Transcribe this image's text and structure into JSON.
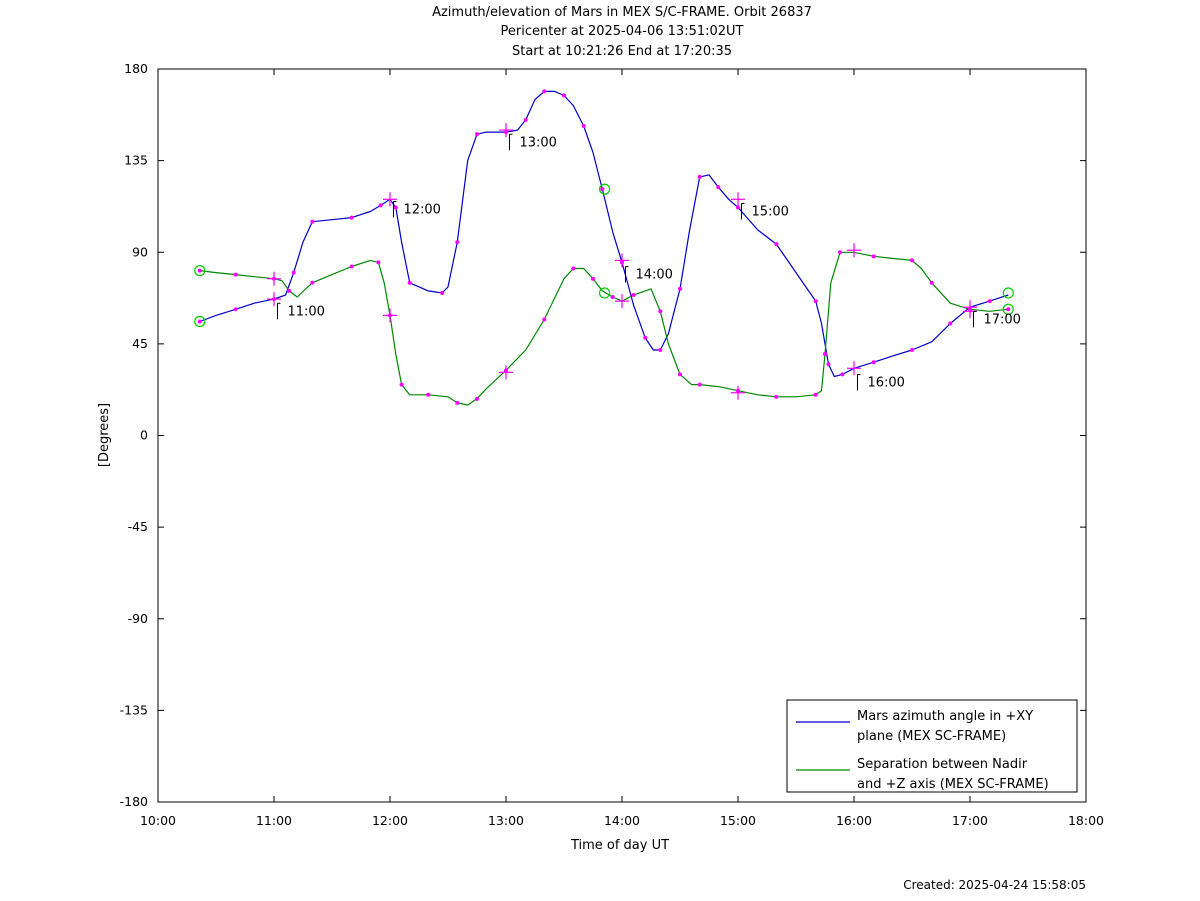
{
  "chart_data": {
    "type": "line",
    "title": [
      "Azimuth/elevation of Mars in MEX S/C-FRAME.  Orbit 26837",
      "Pericenter at 2025-04-06 13:51:02UT",
      "Start at 10:21:26 End at 17:20:35"
    ],
    "xlabel": "Time of day UT",
    "ylabel": "[Degrees]",
    "xlim": [
      10,
      18
    ],
    "ylim": [
      -180,
      180
    ],
    "x_ticks": [
      "10:00",
      "11:00",
      "12:00",
      "13:00",
      "14:00",
      "15:00",
      "16:00",
      "17:00",
      "18:00"
    ],
    "y_ticks": [
      180,
      135,
      90,
      45,
      0,
      -45,
      -90,
      -135,
      -180
    ],
    "footer": "Created: 2025-04-24 15:58:05",
    "legend_position": "bottom-right",
    "hour_labels": [
      {
        "text": "11:00",
        "x": 11.03,
        "y": 62
      },
      {
        "text": "12:00",
        "x": 12.03,
        "y": 112
      },
      {
        "text": "13:00",
        "x": 13.03,
        "y": 145
      },
      {
        "text": "14:00",
        "x": 14.03,
        "y": 80
      },
      {
        "text": "15:00",
        "x": 15.03,
        "y": 111
      },
      {
        "text": "16:00",
        "x": 16.03,
        "y": 27
      },
      {
        "text": "17:00",
        "x": 17.03,
        "y": 58
      }
    ],
    "series": [
      {
        "name": "Mars azimuth angle in +XY\nplane (MEX SC-FRAME)",
        "color": "#0000cc",
        "x": [
          10.36,
          10.5,
          10.67,
          10.83,
          11.0,
          11.1,
          11.17,
          11.25,
          11.33,
          11.5,
          11.67,
          11.83,
          11.92,
          12.0,
          12.05,
          12.1,
          12.17,
          12.33,
          12.45,
          12.5,
          12.58,
          12.67,
          12.75,
          12.83,
          13.0,
          13.1,
          13.17,
          13.25,
          13.33,
          13.42,
          13.5,
          13.58,
          13.67,
          13.75,
          13.83,
          13.92,
          14.0,
          14.1,
          14.2,
          14.27,
          14.33,
          14.4,
          14.5,
          14.58,
          14.67,
          14.75,
          14.83,
          14.92,
          15.0,
          15.17,
          15.33,
          15.5,
          15.67,
          15.72,
          15.78,
          15.83,
          15.9,
          16.0,
          16.17,
          16.33,
          16.5,
          16.67,
          16.83,
          17.0,
          17.17,
          17.33
        ],
        "y": [
          56,
          59,
          62,
          65,
          67,
          69,
          80,
          95,
          105,
          106,
          107,
          110,
          113,
          116,
          112,
          95,
          75,
          71,
          70,
          73,
          95,
          135,
          148,
          149,
          149,
          150,
          155,
          165,
          169,
          169,
          167,
          162,
          152,
          139,
          121,
          100,
          85,
          64,
          48,
          42,
          42,
          50,
          72,
          100,
          127,
          128,
          122,
          116,
          112,
          101,
          94,
          80,
          66,
          55,
          35,
          29,
          30,
          33,
          36,
          39,
          42,
          46,
          55,
          63,
          66,
          69
        ]
      },
      {
        "name": "Separation between Nadir\nand +Z axis (MEX SC-FRAME)",
        "color": "#008800",
        "x": [
          10.36,
          10.5,
          10.67,
          10.83,
          11.0,
          11.07,
          11.13,
          11.2,
          11.33,
          11.5,
          11.67,
          11.83,
          11.9,
          11.95,
          12.0,
          12.05,
          12.1,
          12.17,
          12.33,
          12.5,
          12.58,
          12.67,
          12.75,
          12.83,
          13.0,
          13.17,
          13.33,
          13.5,
          13.58,
          13.67,
          13.75,
          13.83,
          13.92,
          14.0,
          14.1,
          14.25,
          14.33,
          14.4,
          14.5,
          14.6,
          14.67,
          14.83,
          15.0,
          15.17,
          15.33,
          15.5,
          15.67,
          15.72,
          15.75,
          15.8,
          15.88,
          16.0,
          16.17,
          16.33,
          16.5,
          16.58,
          16.67,
          16.83,
          17.0,
          17.17,
          17.33
        ],
        "y": [
          81,
          80,
          79,
          78,
          77,
          76,
          71,
          68,
          75,
          79,
          83,
          86,
          85,
          75,
          59,
          40,
          25,
          20,
          20,
          19,
          16,
          15,
          18,
          23,
          32,
          42,
          57,
          77,
          82,
          82,
          77,
          71,
          68,
          66,
          69,
          72,
          61,
          45,
          30,
          25,
          25,
          24,
          22,
          20,
          19,
          19,
          20,
          22,
          40,
          75,
          90,
          90,
          88,
          87,
          86,
          82,
          75,
          65,
          62,
          61,
          62
        ]
      }
    ],
    "markers": {
      "circle_color": "#00cc00",
      "plus_color": "#ff00ff",
      "circles": [
        [
          10.36,
          56
        ],
        [
          10.36,
          81
        ],
        [
          13.85,
          121
        ],
        [
          13.85,
          70
        ],
        [
          17.33,
          70
        ],
        [
          17.33,
          62
        ]
      ],
      "pluses": [
        [
          11.0,
          77
        ],
        [
          11.0,
          67
        ],
        [
          12.0,
          116
        ],
        [
          12.0,
          59
        ],
        [
          13.0,
          150
        ],
        [
          13.0,
          31
        ],
        [
          14.0,
          86
        ],
        [
          14.0,
          66
        ],
        [
          15.0,
          116
        ],
        [
          15.0,
          21
        ],
        [
          16.0,
          91
        ],
        [
          16.0,
          33
        ],
        [
          17.0,
          63
        ],
        [
          17.0,
          61
        ]
      ]
    }
  }
}
